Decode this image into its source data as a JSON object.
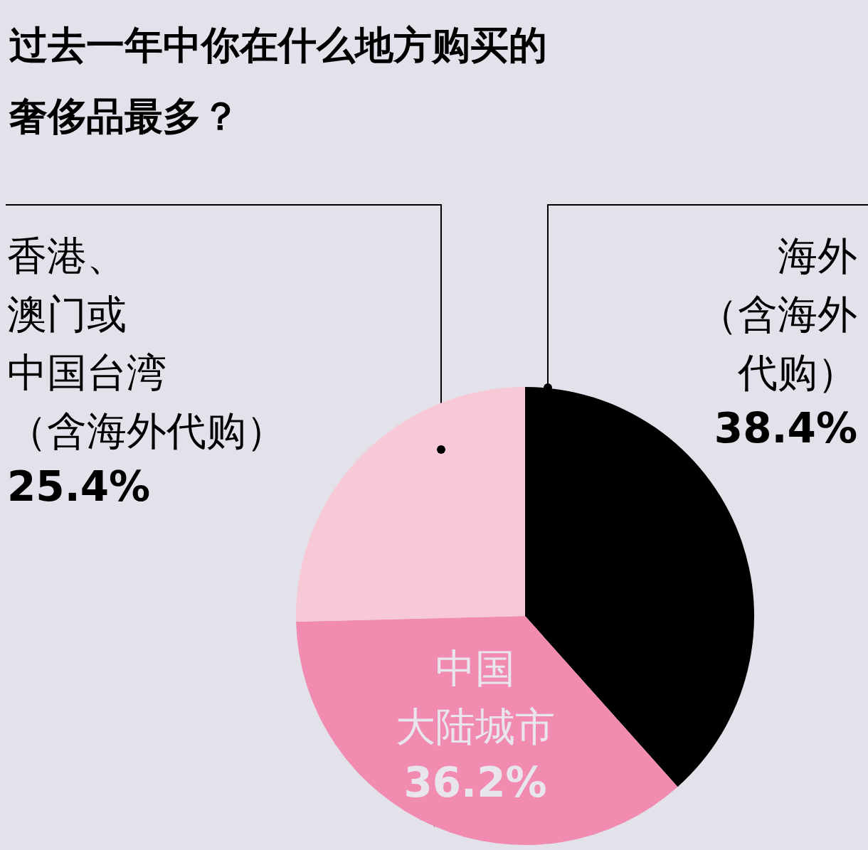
{
  "chart_data": {
    "type": "pie",
    "title": "过去一年中你在什么地方购买的奢侈品最多？",
    "categories": [
      "海外（含海外代购）",
      "中国大陆城市",
      "香港、澳门或中国台湾（含海外代购）"
    ],
    "values": [
      38.4,
      36.2,
      25.4
    ],
    "colors": [
      "#000000",
      "#f28bb0",
      "#f7c9d6"
    ],
    "value_labels": [
      "38.4%",
      "36.2%",
      "25.4%"
    ]
  }
}
